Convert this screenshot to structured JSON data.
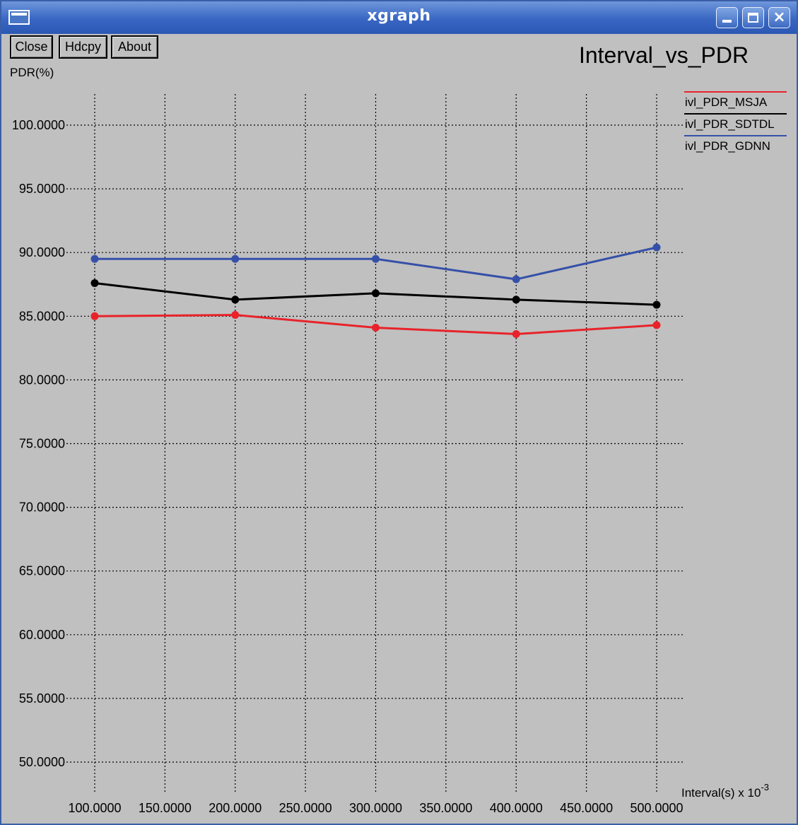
{
  "window": {
    "title": "xgraph"
  },
  "toolbar": {
    "close_label": "Close",
    "hdcpy_label": "Hdcpy",
    "about_label": "About"
  },
  "colors": {
    "titlebar": "#3866c3",
    "window_bg": "#c0c0c0",
    "msja": "#e8232a",
    "sdtdl": "#000000",
    "gdnn": "#3550a8"
  },
  "icons": {
    "app_menu": "window-menu-icon",
    "minimize": "minimize-icon",
    "maximize": "maximize-icon",
    "close": "close-x-icon"
  },
  "chart_data": {
    "type": "line",
    "title": "Interval_vs_PDR",
    "ylabel": "PDR(%)",
    "xlabel_text": "Interval(s) x 10",
    "xlabel_exponent": "-3",
    "x": [
      100,
      200,
      300,
      400,
      500
    ],
    "xlim": [
      100,
      500
    ],
    "ylim": [
      50,
      100
    ],
    "grid": true,
    "legend_position": "top-right",
    "x_ticks": [
      "100.0000",
      "150.0000",
      "200.0000",
      "250.0000",
      "300.0000",
      "350.0000",
      "400.0000",
      "450.0000",
      "500.0000"
    ],
    "x_tick_values": [
      100,
      150,
      200,
      250,
      300,
      350,
      400,
      450,
      500
    ],
    "y_ticks": [
      "50.0000",
      "55.0000",
      "60.0000",
      "65.0000",
      "70.0000",
      "75.0000",
      "80.0000",
      "85.0000",
      "90.0000",
      "95.0000",
      "100.0000"
    ],
    "y_tick_values": [
      50,
      55,
      60,
      65,
      70,
      75,
      80,
      85,
      90,
      95,
      100
    ],
    "series": [
      {
        "name": "ivl_PDR_MSJA",
        "color": "#e8232a",
        "values": [
          85.0,
          85.1,
          84.1,
          83.6,
          84.3
        ]
      },
      {
        "name": "ivl_PDR_SDTDL",
        "color": "#000000",
        "values": [
          87.6,
          86.3,
          86.8,
          86.3,
          85.9
        ]
      },
      {
        "name": "ivl_PDR_GDNN",
        "color": "#3550a8",
        "values": [
          89.5,
          89.5,
          89.5,
          87.9,
          90.4
        ]
      }
    ]
  }
}
